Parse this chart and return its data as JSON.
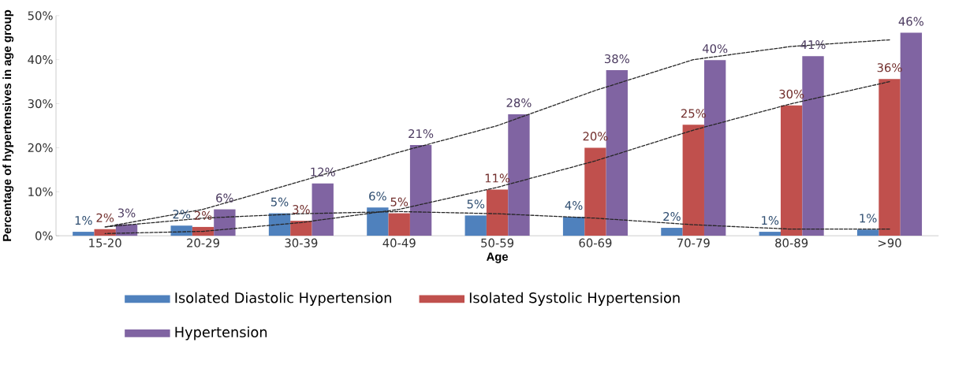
{
  "chart_data": {
    "type": "bar",
    "xlabel": "Age",
    "ylabel": "Percentage of hypertensives in age group",
    "categories": [
      "15-20",
      "20-29",
      "30-39",
      "40-49",
      "50-59",
      "60-69",
      "70-79",
      "80-89",
      ">90"
    ],
    "series": [
      {
        "name": "Isolated Diastolic Hypertension",
        "color": "#4f81bd",
        "values": [
          0.9,
          2.3,
          5.1,
          6.4,
          4.6,
          4.3,
          1.8,
          0.9,
          1.4
        ],
        "value_labels": [
          "1%",
          "2%",
          "5%",
          "6%",
          "5%",
          "4%",
          "2%",
          "1%",
          "1%"
        ]
      },
      {
        "name": "Isolated Systolic Hypertension",
        "color": "#c0504d",
        "values": [
          1.5,
          2.0,
          3.4,
          5.1,
          10.5,
          20.0,
          25.2,
          29.6,
          35.6
        ],
        "value_labels": [
          "2%",
          "2%",
          "3%",
          "5%",
          "11%",
          "20%",
          "25%",
          "30%",
          "36%"
        ]
      },
      {
        "name": "Hypertension",
        "color": "#8064a2",
        "values": [
          2.6,
          6.0,
          11.9,
          20.6,
          27.6,
          37.6,
          39.9,
          40.8,
          46.1
        ],
        "value_labels": [
          "3%",
          "6%",
          "12%",
          "21%",
          "28%",
          "38%",
          "40%",
          "41%",
          "46%"
        ]
      },
      {
        "type": "line",
        "color": "#262626",
        "line_style": "dashed",
        "values": [
          2,
          4,
          5,
          5.5,
          5,
          4,
          2.5,
          1.5,
          1.5
        ]
      },
      {
        "type": "line",
        "color": "#262626",
        "line_style": "dashed",
        "values": [
          0.5,
          1,
          3,
          6,
          11,
          17,
          24,
          30,
          35
        ]
      },
      {
        "type": "line",
        "color": "#262626",
        "line_style": "dashed",
        "values": [
          2,
          6,
          12.4,
          19,
          25,
          33,
          40,
          43,
          44.5
        ]
      }
    ],
    "ylim": [
      0,
      50
    ],
    "yticks": [
      {
        "value": 0,
        "label": "0%"
      },
      {
        "value": 10,
        "label": "10%"
      },
      {
        "value": 20,
        "label": "20%"
      },
      {
        "value": 30,
        "label": "30%"
      },
      {
        "value": 40,
        "label": "40%"
      },
      {
        "value": 50,
        "label": "50%"
      }
    ],
    "grid": false,
    "legend": "bottom"
  }
}
